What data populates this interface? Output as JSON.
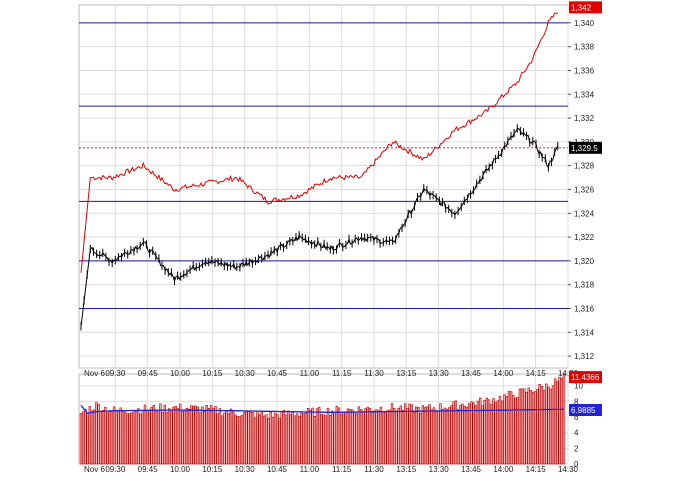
{
  "chart_data": [
    {
      "type": "line",
      "panel": "price",
      "x_labels": [
        "Nov 6",
        "09:30",
        "09:45",
        "10:00",
        "10:15",
        "10:30",
        "10:45",
        "11:00",
        "11:15",
        "11:30",
        "13:15",
        "13:30",
        "13:45",
        "14:00",
        "14:15",
        "14:30"
      ],
      "y_ticks": [
        "1,312",
        "1,314",
        "1,316",
        "1,318",
        "1,320",
        "1,322",
        "1,324",
        "1,326",
        "1,328",
        "1,330",
        "1,332",
        "1,334",
        "1,336",
        "1,338",
        "1,340"
      ],
      "ylim": [
        1311,
        1341.5
      ],
      "horizontal_levels": [
        1340.0,
        1333.0,
        1325.0,
        1320.0,
        1316.0
      ],
      "reference_level": 1329.5,
      "red_series": {
        "x": [
          0,
          0.3,
          1,
          2,
          3,
          4,
          5,
          6,
          7,
          8,
          9,
          10,
          11,
          12,
          13,
          14,
          14.5,
          15,
          15.3
        ],
        "y": [
          1319.0,
          1327.0,
          1327.0,
          1328.0,
          1326.0,
          1326.5,
          1327.0,
          1325.0,
          1325.5,
          1327.0,
          1327.0,
          1330.0,
          1328.5,
          1331.0,
          1332.5,
          1335.0,
          1337.0,
          1340.0,
          1341.0
        ]
      },
      "black_series": {
        "x": [
          0,
          0.3,
          1,
          2,
          3,
          4,
          5,
          6,
          7,
          8,
          9,
          10,
          11,
          12,
          13,
          14,
          14.5,
          15,
          15.3
        ],
        "y": [
          1314.5,
          1321.0,
          1320.0,
          1321.5,
          1318.5,
          1320.0,
          1319.5,
          1320.5,
          1322.0,
          1321.0,
          1322.0,
          1321.5,
          1326.0,
          1324.0,
          1327.5,
          1331.0,
          1330.0,
          1328.0,
          1329.5
        ]
      },
      "last_price_tags": [
        "1,342",
        "1,329.5"
      ],
      "grid": true
    },
    {
      "type": "bar",
      "panel": "volume",
      "y_ticks": [
        "0",
        "2",
        "4",
        "6",
        "8",
        "10"
      ],
      "ylim": [
        0,
        11.5
      ],
      "x_labels": [
        "Nov 6",
        "09:30",
        "09:45",
        "10:00",
        "10:15",
        "10:30",
        "10:45",
        "11:00",
        "11:15",
        "11:30",
        "13:15",
        "13:30",
        "13:45",
        "14:00",
        "14:15",
        "14:30"
      ],
      "profile": {
        "x": [
          0,
          0.5,
          1,
          2,
          3,
          4,
          5,
          6,
          7,
          8,
          9,
          10,
          11,
          12,
          13,
          14,
          15,
          15.5
        ],
        "y": [
          6.5,
          7.5,
          6.8,
          7.0,
          7.2,
          7.0,
          6.5,
          6.2,
          6.5,
          6.8,
          7.0,
          7.2,
          7.0,
          7.5,
          8.0,
          9.0,
          10.0,
          11.0
        ]
      },
      "moving_average": {
        "x": [
          0,
          0.2,
          0.5,
          1,
          3,
          5,
          8,
          10,
          12,
          14,
          15.5
        ],
        "y": [
          7.5,
          6.5,
          6.7,
          6.8,
          6.9,
          6.8,
          6.6,
          6.7,
          6.8,
          6.9,
          7.0
        ]
      },
      "value_tags": [
        "11.4366",
        "6.9885"
      ],
      "grid": true
    }
  ],
  "colors": {
    "red": "#e00000",
    "black": "#000000",
    "blue_level": "#1a1aa8",
    "ma": "#2222dd",
    "grid": "#dddddd",
    "volume_fill": "#f5b4b4",
    "volume_stroke": "#c00000",
    "tag_black": "#000000"
  }
}
